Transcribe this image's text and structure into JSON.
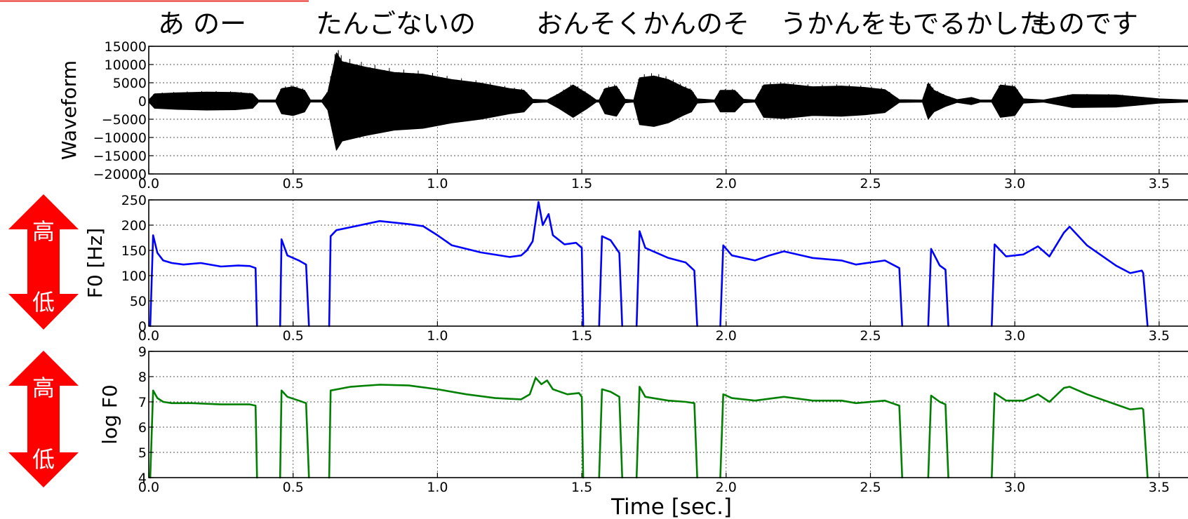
{
  "transcript": [
    "あ のー",
    "たんごないの",
    "おんそくかんのそ",
    "うかんをもでるかした",
    "ものです"
  ],
  "indicators": [
    {
      "top_label": "高",
      "bottom_label": "低",
      "color": "#ff0000"
    },
    {
      "top_label": "高",
      "bottom_label": "低",
      "color": "#ff0000"
    }
  ],
  "chart_data": [
    {
      "type": "line",
      "ylabel": "Waveform",
      "ylim": [
        -20000,
        15000
      ],
      "yticks": [
        15000,
        10000,
        5000,
        0,
        -5000,
        -10000,
        -15000,
        -20000
      ],
      "ytick_labels": [
        "15000",
        "10000",
        "5000",
        "0",
        "−5000",
        "−10000",
        "−15000",
        "−20000"
      ],
      "xlim": [
        0.0,
        3.6
      ],
      "xticks": [
        0.0,
        0.5,
        1.0,
        1.5,
        2.0,
        2.5,
        3.0,
        3.5
      ],
      "xtick_labels": [
        "0.0",
        "0.5",
        "1.0",
        "1.5",
        "2.0",
        "2.5",
        "3.0",
        "3.5"
      ],
      "grid": true,
      "series": [
        {
          "color": "#000000",
          "envelope": [
            [
              0.0,
              300
            ],
            [
              0.02,
              2000
            ],
            [
              0.1,
              2300
            ],
            [
              0.2,
              2500
            ],
            [
              0.3,
              2400
            ],
            [
              0.36,
              2000
            ],
            [
              0.38,
              300
            ],
            [
              0.44,
              300
            ],
            [
              0.46,
              3500
            ],
            [
              0.5,
              4000
            ],
            [
              0.54,
              3000
            ],
            [
              0.56,
              300
            ],
            [
              0.6,
              300
            ],
            [
              0.62,
              2500
            ],
            [
              0.65,
              13500
            ],
            [
              0.67,
              11000
            ],
            [
              0.75,
              9500
            ],
            [
              0.85,
              8000
            ],
            [
              0.95,
              7500
            ],
            [
              1.05,
              6000
            ],
            [
              1.15,
              5000
            ],
            [
              1.25,
              3500
            ],
            [
              1.3,
              3000
            ],
            [
              1.33,
              500
            ],
            [
              1.38,
              300
            ],
            [
              1.42,
              2000
            ],
            [
              1.47,
              4500
            ],
            [
              1.52,
              2000
            ],
            [
              1.55,
              300
            ],
            [
              1.56,
              300
            ],
            [
              1.58,
              3500
            ],
            [
              1.62,
              4200
            ],
            [
              1.65,
              500
            ],
            [
              1.68,
              300
            ],
            [
              1.7,
              6500
            ],
            [
              1.75,
              7000
            ],
            [
              1.8,
              6000
            ],
            [
              1.85,
              4000
            ],
            [
              1.88,
              3000
            ],
            [
              1.9,
              600
            ],
            [
              1.96,
              300
            ],
            [
              1.98,
              3000
            ],
            [
              2.03,
              3000
            ],
            [
              2.06,
              500
            ],
            [
              2.1,
              300
            ],
            [
              2.13,
              4500
            ],
            [
              2.2,
              4800
            ],
            [
              2.3,
              4000
            ],
            [
              2.4,
              4200
            ],
            [
              2.48,
              3800
            ],
            [
              2.55,
              3200
            ],
            [
              2.6,
              400
            ],
            [
              2.68,
              300
            ],
            [
              2.7,
              5000
            ],
            [
              2.72,
              3000
            ],
            [
              2.76,
              1500
            ],
            [
              2.8,
              400
            ],
            [
              2.85,
              1000
            ],
            [
              2.88,
              300
            ],
            [
              2.92,
              300
            ],
            [
              2.95,
              4500
            ],
            [
              3.0,
              4000
            ],
            [
              3.03,
              600
            ],
            [
              3.1,
              300
            ],
            [
              3.2,
              1800
            ],
            [
              3.35,
              1700
            ],
            [
              3.42,
              1200
            ],
            [
              3.5,
              600
            ],
            [
              3.6,
              300
            ]
          ]
        }
      ]
    },
    {
      "type": "line",
      "ylabel": "F0 [Hz]",
      "ylim": [
        0,
        250
      ],
      "yticks": [
        0,
        50,
        100,
        150,
        200,
        250
      ],
      "ytick_labels": [
        "0",
        "50",
        "100",
        "150",
        "200",
        "250"
      ],
      "xlim": [
        0.0,
        3.6
      ],
      "xticks": [
        0.0,
        0.5,
        1.0,
        1.5,
        2.0,
        2.5,
        3.0,
        3.5
      ],
      "xtick_labels": [
        "0.0",
        "0.5",
        "1.0",
        "1.5",
        "2.0",
        "2.5",
        "3.0",
        "3.5"
      ],
      "grid": true,
      "series": [
        {
          "color": "#0000ff",
          "segments": [
            [
              [
                0.005,
                0
              ],
              [
                0.015,
                180
              ],
              [
                0.03,
                145
              ],
              [
                0.05,
                130
              ],
              [
                0.08,
                125
              ],
              [
                0.12,
                122
              ],
              [
                0.18,
                125
              ],
              [
                0.25,
                118
              ],
              [
                0.31,
                120
              ],
              [
                0.35,
                119
              ],
              [
                0.37,
                115
              ],
              [
                0.375,
                0
              ]
            ],
            [
              [
                0.455,
                0
              ],
              [
                0.46,
                172
              ],
              [
                0.48,
                140
              ],
              [
                0.52,
                130
              ],
              [
                0.545,
                122
              ],
              [
                0.555,
                0
              ]
            ],
            [
              [
                0.625,
                0
              ],
              [
                0.63,
                178
              ],
              [
                0.65,
                190
              ],
              [
                0.7,
                196
              ],
              [
                0.8,
                208
              ],
              [
                0.9,
                202
              ],
              [
                0.95,
                198
              ],
              [
                1.0,
                180
              ],
              [
                1.05,
                160
              ],
              [
                1.15,
                146
              ],
              [
                1.25,
                137
              ],
              [
                1.29,
                140
              ],
              [
                1.31,
                150
              ],
              [
                1.33,
                168
              ],
              [
                1.35,
                246
              ],
              [
                1.365,
                200
              ],
              [
                1.385,
                222
              ],
              [
                1.4,
                180
              ],
              [
                1.44,
                162
              ],
              [
                1.48,
                165
              ],
              [
                1.5,
                155
              ],
              [
                1.505,
                0
              ]
            ],
            [
              [
                1.56,
                0
              ],
              [
                1.57,
                178
              ],
              [
                1.6,
                170
              ],
              [
                1.63,
                145
              ],
              [
                1.64,
                0
              ]
            ],
            [
              [
                1.69,
                0
              ],
              [
                1.7,
                188
              ],
              [
                1.72,
                155
              ],
              [
                1.8,
                135
              ],
              [
                1.86,
                126
              ],
              [
                1.89,
                110
              ],
              [
                1.9,
                0
              ]
            ],
            [
              [
                1.98,
                0
              ],
              [
                1.99,
                160
              ],
              [
                2.02,
                140
              ],
              [
                2.1,
                130
              ],
              [
                2.15,
                140
              ],
              [
                2.2,
                148
              ],
              [
                2.3,
                135
              ],
              [
                2.4,
                130
              ],
              [
                2.45,
                122
              ],
              [
                2.55,
                130
              ],
              [
                2.6,
                115
              ],
              [
                2.61,
                0
              ]
            ],
            [
              [
                2.7,
                0
              ],
              [
                2.71,
                153
              ],
              [
                2.74,
                120
              ],
              [
                2.76,
                112
              ],
              [
                2.77,
                0
              ]
            ],
            [
              [
                2.92,
                0
              ],
              [
                2.93,
                162
              ],
              [
                2.97,
                138
              ],
              [
                3.03,
                142
              ],
              [
                3.08,
                158
              ],
              [
                3.12,
                138
              ],
              [
                3.17,
                185
              ],
              [
                3.19,
                197
              ],
              [
                3.25,
                160
              ],
              [
                3.35,
                120
              ],
              [
                3.4,
                105
              ],
              [
                3.44,
                110
              ],
              [
                3.445,
                105
              ],
              [
                3.46,
                0
              ]
            ]
          ]
        }
      ]
    },
    {
      "type": "line",
      "ylabel": "log F0",
      "ylim": [
        4,
        9
      ],
      "yticks": [
        4,
        5,
        6,
        7,
        8,
        9
      ],
      "ytick_labels": [
        "4",
        "5",
        "6",
        "7",
        "8",
        "9"
      ],
      "xlim": [
        0.0,
        3.6
      ],
      "xticks": [
        0.0,
        0.5,
        1.0,
        1.5,
        2.0,
        2.5,
        3.0,
        3.5
      ],
      "xtick_labels": [
        "0.0",
        "0.5",
        "1.0",
        "1.5",
        "2.0",
        "2.5",
        "3.0",
        "3.5"
      ],
      "xlabel": "Time [sec.]",
      "grid": true,
      "series": [
        {
          "color": "#008000",
          "segments": [
            [
              [
                0.005,
                4
              ],
              [
                0.015,
                7.45
              ],
              [
                0.03,
                7.15
              ],
              [
                0.05,
                7.0
              ],
              [
                0.08,
                6.95
              ],
              [
                0.15,
                6.95
              ],
              [
                0.25,
                6.9
              ],
              [
                0.35,
                6.9
              ],
              [
                0.37,
                6.85
              ],
              [
                0.375,
                4
              ]
            ],
            [
              [
                0.455,
                4
              ],
              [
                0.46,
                7.45
              ],
              [
                0.48,
                7.2
              ],
              [
                0.52,
                7.05
              ],
              [
                0.545,
                6.95
              ],
              [
                0.555,
                4
              ]
            ],
            [
              [
                0.625,
                4
              ],
              [
                0.63,
                7.45
              ],
              [
                0.7,
                7.6
              ],
              [
                0.8,
                7.68
              ],
              [
                0.9,
                7.65
              ],
              [
                1.0,
                7.5
              ],
              [
                1.1,
                7.3
              ],
              [
                1.2,
                7.15
              ],
              [
                1.29,
                7.1
              ],
              [
                1.32,
                7.3
              ],
              [
                1.34,
                7.95
              ],
              [
                1.36,
                7.7
              ],
              [
                1.38,
                7.85
              ],
              [
                1.4,
                7.5
              ],
              [
                1.45,
                7.3
              ],
              [
                1.49,
                7.35
              ],
              [
                1.5,
                7.2
              ],
              [
                1.505,
                4
              ]
            ],
            [
              [
                1.56,
                4
              ],
              [
                1.57,
                7.5
              ],
              [
                1.6,
                7.4
              ],
              [
                1.63,
                7.2
              ],
              [
                1.64,
                4
              ]
            ],
            [
              [
                1.69,
                4
              ],
              [
                1.7,
                7.6
              ],
              [
                1.72,
                7.2
              ],
              [
                1.8,
                7.05
              ],
              [
                1.86,
                7.0
              ],
              [
                1.89,
                6.95
              ],
              [
                1.9,
                4
              ]
            ],
            [
              [
                1.98,
                4
              ],
              [
                1.99,
                7.3
              ],
              [
                2.02,
                7.15
              ],
              [
                2.1,
                7.05
              ],
              [
                2.2,
                7.2
              ],
              [
                2.3,
                7.05
              ],
              [
                2.4,
                7.05
              ],
              [
                2.45,
                6.95
              ],
              [
                2.55,
                7.05
              ],
              [
                2.6,
                6.85
              ],
              [
                2.61,
                4
              ]
            ],
            [
              [
                2.7,
                4
              ],
              [
                2.71,
                7.25
              ],
              [
                2.74,
                7.0
              ],
              [
                2.76,
                6.9
              ],
              [
                2.77,
                4
              ]
            ],
            [
              [
                2.92,
                4
              ],
              [
                2.93,
                7.35
              ],
              [
                2.97,
                7.05
              ],
              [
                3.03,
                7.05
              ],
              [
                3.08,
                7.3
              ],
              [
                3.12,
                7.0
              ],
              [
                3.17,
                7.55
              ],
              [
                3.19,
                7.6
              ],
              [
                3.25,
                7.3
              ],
              [
                3.35,
                6.9
              ],
              [
                3.4,
                6.7
              ],
              [
                3.44,
                6.75
              ],
              [
                3.445,
                6.7
              ],
              [
                3.46,
                4
              ]
            ]
          ]
        }
      ]
    }
  ]
}
